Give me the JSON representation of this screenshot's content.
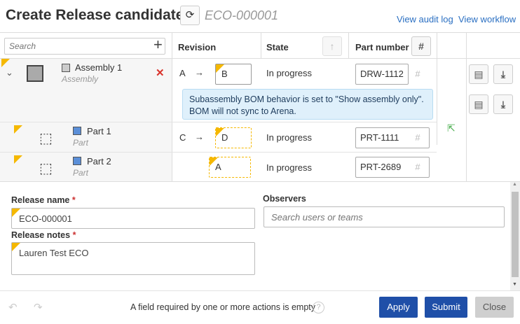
{
  "header": {
    "title": "Create Release candidate",
    "eco_id": "ECO-000001",
    "audit_link": "View audit log",
    "workflow_link": "View workflow"
  },
  "table": {
    "search_placeholder": "Search",
    "columns": {
      "revision": "Revision",
      "state": "State",
      "part_number": "Part number"
    },
    "rows": [
      {
        "name": "Assembly 1",
        "type": "Assembly",
        "rev_from": "A",
        "rev_to": "B",
        "state": "In progress",
        "part_number": "DRW-1112"
      },
      {
        "name": "Part 1",
        "type": "Part",
        "rev_from": "C",
        "rev_to": "D",
        "state": "In progress",
        "part_number": "PRT-1111"
      },
      {
        "name": "Part 2",
        "type": "Part",
        "rev_from": "",
        "rev_to": "A",
        "state": "In progress",
        "part_number": "PRT-2689"
      }
    ],
    "info_message": "Subassembly BOM behavior is set to \"Show assembly only\". BOM will not sync to Arena.",
    "arrow": "→"
  },
  "form": {
    "release_name_label": "Release name",
    "release_name_value": "ECO-000001",
    "release_notes_label": "Release notes",
    "release_notes_value": "Lauren Test ECO",
    "observers_label": "Observers",
    "observers_placeholder": "Search users or teams",
    "required_mark": "*"
  },
  "footer": {
    "message": "A field required by one or more actions is empty",
    "apply": "Apply",
    "submit": "Submit",
    "close": "Close"
  },
  "colors": {
    "primary": "#1f4fa8",
    "link": "#2a6fc2",
    "flag": "#f5b800",
    "remove": "#d9322b"
  }
}
